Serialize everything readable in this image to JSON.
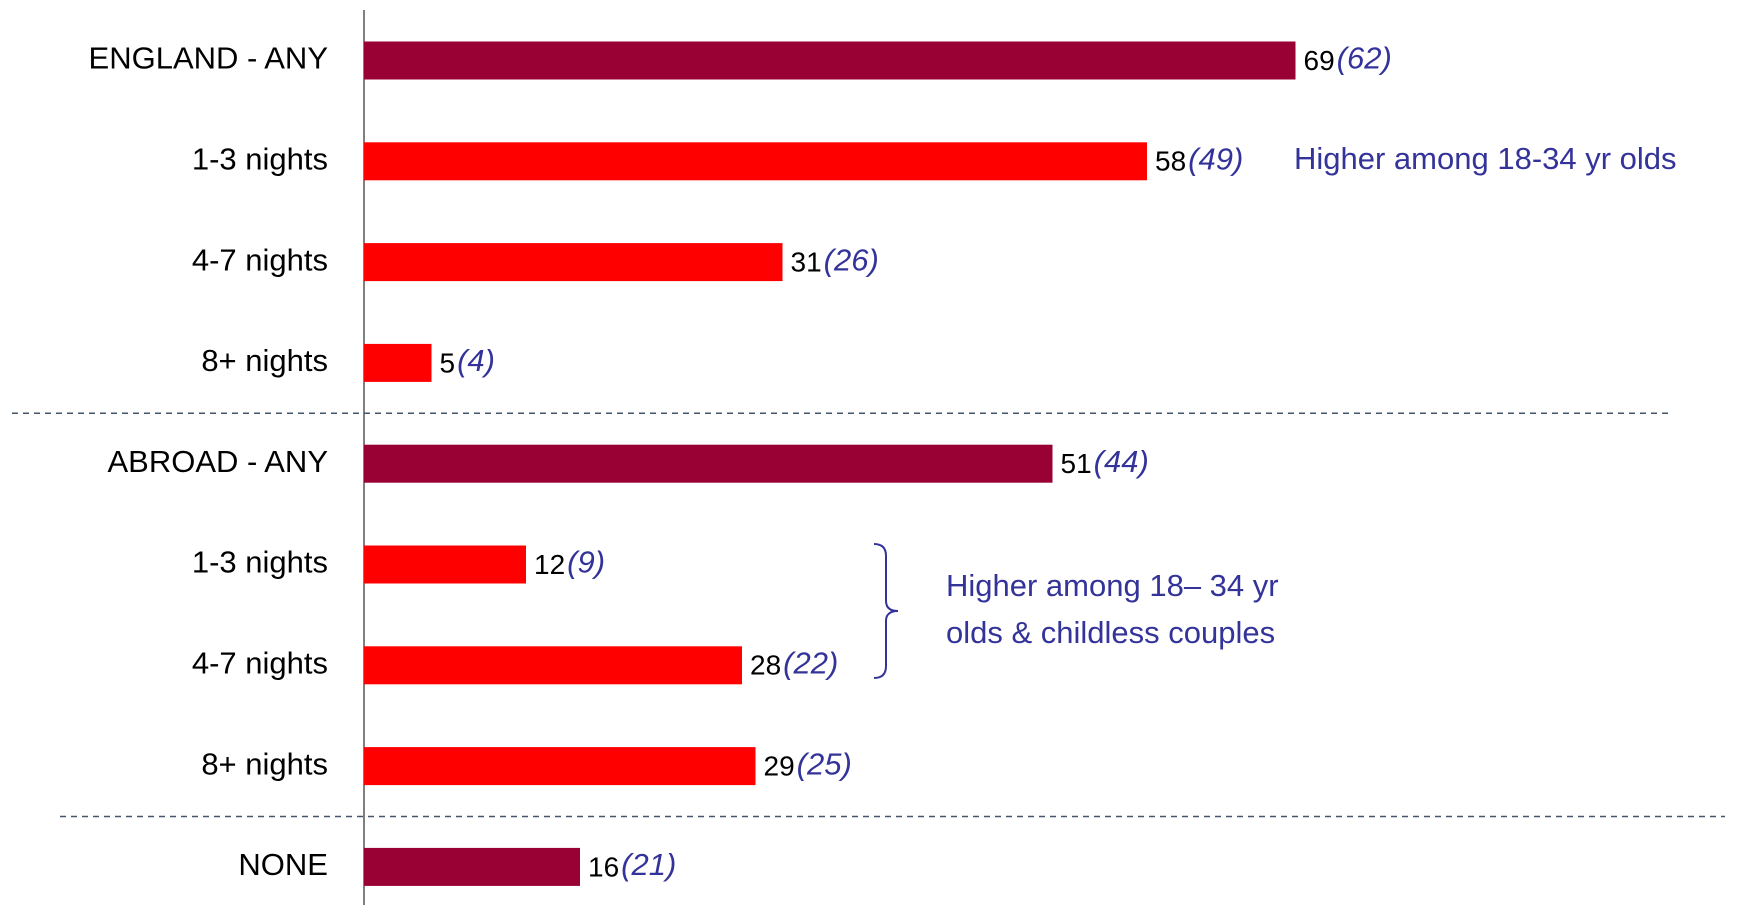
{
  "chart_data": {
    "type": "bar",
    "orientation": "horizontal",
    "categories": [
      "ENGLAND - ANY",
      "1-3 nights",
      "4-7 nights",
      "8+ nights",
      "ABROAD - ANY",
      "1-3 nights",
      "4-7 nights",
      "8+ nights",
      "NONE"
    ],
    "values": [
      69,
      58,
      31,
      5,
      51,
      12,
      28,
      29,
      16
    ],
    "previous_values": [
      62,
      49,
      26,
      4,
      44,
      9,
      22,
      25,
      21
    ],
    "previous_value_labels": [
      "(62)",
      "(49)",
      "(26)",
      "(4)",
      "(44)",
      "(9)",
      "(22)",
      "(25)",
      "(21)"
    ],
    "colors": [
      "#990033",
      "#ff0000",
      "#ff0000",
      "#ff0000",
      "#990033",
      "#ff0000",
      "#ff0000",
      "#ff0000",
      "#990033"
    ],
    "xlim": [
      0,
      100
    ],
    "annotations": [
      {
        "text": "Higher among 18-34 yr olds"
      },
      {
        "lines": [
          "Higher among 18– 34 yr",
          "olds & childless couples"
        ]
      }
    ]
  }
}
